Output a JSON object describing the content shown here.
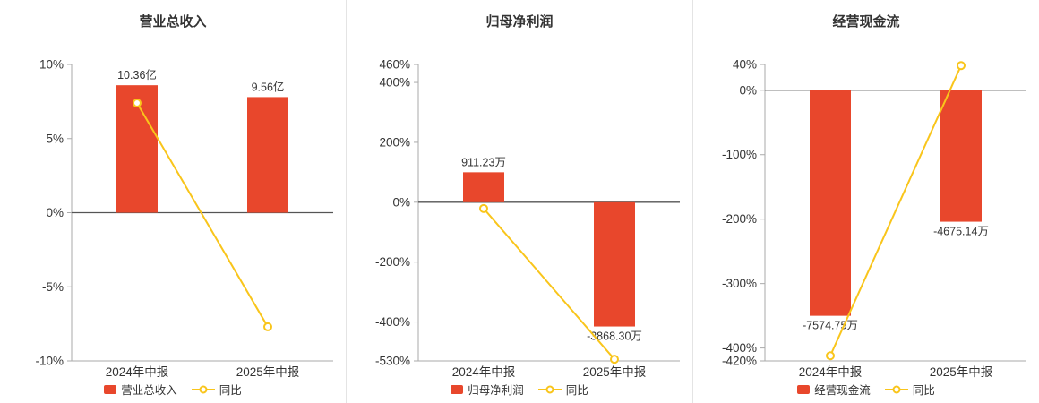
{
  "theme": {
    "bar_color": "#e8472c",
    "line_color": "#f9c51b",
    "axis_color": "#aaaaaa",
    "zero_line_color": "#555555",
    "text_color": "#333333",
    "divider_color": "#e4e4e4",
    "background": "#ffffff"
  },
  "chart_data": [
    {
      "type": "bar",
      "title": "营业总收入",
      "categories": [
        "2024年中报",
        "2025年中报"
      ],
      "bar_series": {
        "name": "营业总收入",
        "value_labels": [
          "10.36亿",
          "9.56亿"
        ],
        "plotted_axis_pct": [
          8.6,
          7.8
        ]
      },
      "line_series": {
        "name": "同比",
        "values_pct": [
          7.4,
          -7.7
        ]
      },
      "y_ticks_pct": [
        10,
        5,
        0,
        -5,
        -10
      ],
      "ylim_pct": [
        -10,
        10
      ],
      "y_tick_suffix": "%",
      "grid": false,
      "legend_position": "bottom"
    },
    {
      "type": "bar",
      "title": "归母净利润",
      "categories": [
        "2024年中报",
        "2025年中报"
      ],
      "bar_series": {
        "name": "归母净利润",
        "value_labels": [
          "911.23万",
          "-3868.30万"
        ],
        "plotted_axis_pct": [
          100,
          -415
        ]
      },
      "line_series": {
        "name": "同比",
        "values_pct": [
          -21,
          -524.5
        ]
      },
      "y_ticks_pct": [
        460,
        400,
        200,
        0,
        -200,
        -400,
        -530
      ],
      "ylim_pct": [
        -530,
        460
      ],
      "y_tick_suffix": "%",
      "grid": false,
      "legend_position": "bottom"
    },
    {
      "type": "bar",
      "title": "经营现金流",
      "categories": [
        "2024年中报",
        "2025年中报"
      ],
      "bar_series": {
        "name": "经营现金流",
        "value_labels": [
          "-7574.75万",
          "-4675.14万"
        ],
        "plotted_axis_pct": [
          -350,
          -204
        ]
      },
      "line_series": {
        "name": "同比",
        "values_pct": [
          -412,
          38.3
        ]
      },
      "y_ticks_pct": [
        40,
        0,
        -100,
        -200,
        -300,
        -400,
        -420
      ],
      "ylim_pct": [
        -420,
        40
      ],
      "y_tick_suffix": "%",
      "grid": false,
      "legend_position": "bottom"
    }
  ]
}
